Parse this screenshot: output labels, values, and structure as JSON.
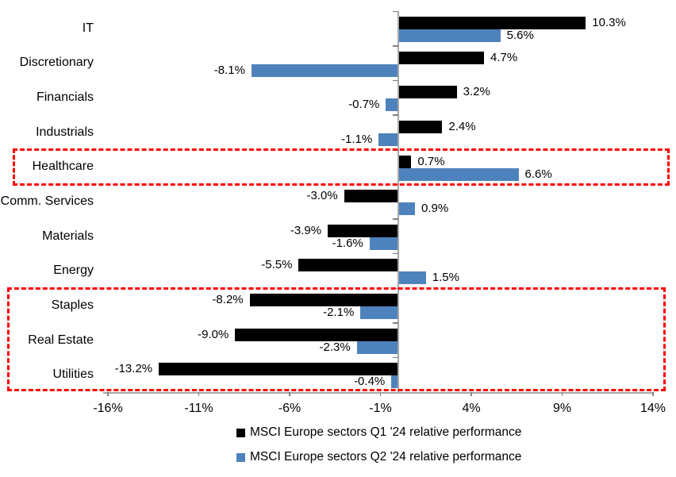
{
  "chart_data": {
    "type": "bar",
    "orientation": "horizontal",
    "categories": [
      "IT",
      "Discretionary",
      "Financials",
      "Industrials",
      "Healthcare",
      "Comm. Services",
      "Materials",
      "Energy",
      "Staples",
      "Real Estate",
      "Utilities"
    ],
    "series": [
      {
        "name": "MSCI Europe sectors Q1 '24 relative performance",
        "color": "#000000",
        "values": [
          10.3,
          4.7,
          3.2,
          2.4,
          0.7,
          -3.0,
          -3.9,
          -5.5,
          -8.2,
          -9.0,
          -13.2
        ],
        "labels": [
          "10.3%",
          "4.7%",
          "3.2%",
          "2.4%",
          "0.7%",
          "-3.0%",
          "-3.9%",
          "-5.5%",
          "-8.2%",
          "-9.0%",
          "-13.2%"
        ]
      },
      {
        "name": "MSCI Europe sectors Q2 '24 relative performance",
        "color": "#4e82bc",
        "values": [
          5.6,
          -8.1,
          -0.7,
          -1.1,
          6.6,
          0.9,
          -1.6,
          1.5,
          -2.1,
          -2.3,
          -0.4
        ],
        "labels": [
          "5.6%",
          "-8.1%",
          "-0.7%",
          "-1.1%",
          "6.6%",
          "0.9%",
          "-1.6%",
          "1.5%",
          "-2.1%",
          "-2.3%",
          "-0.4%"
        ]
      }
    ],
    "x_ticks": [
      "-16%",
      "-11%",
      "-6%",
      "-1%",
      "4%",
      "9%",
      "14%"
    ],
    "x_tick_values": [
      -16,
      -11,
      -6,
      -1,
      4,
      9,
      14
    ],
    "xlim": [
      -16,
      14
    ],
    "grid": false,
    "legend_position": "bottom",
    "highlight_color": "#ff0000",
    "annotations": [
      {
        "name": "healthcare-highlight",
        "type": "dashed-box",
        "categories": [
          "Healthcare"
        ]
      },
      {
        "name": "defensives-highlight",
        "type": "dashed-box",
        "categories": [
          "Staples",
          "Real Estate",
          "Utilities"
        ]
      }
    ]
  }
}
